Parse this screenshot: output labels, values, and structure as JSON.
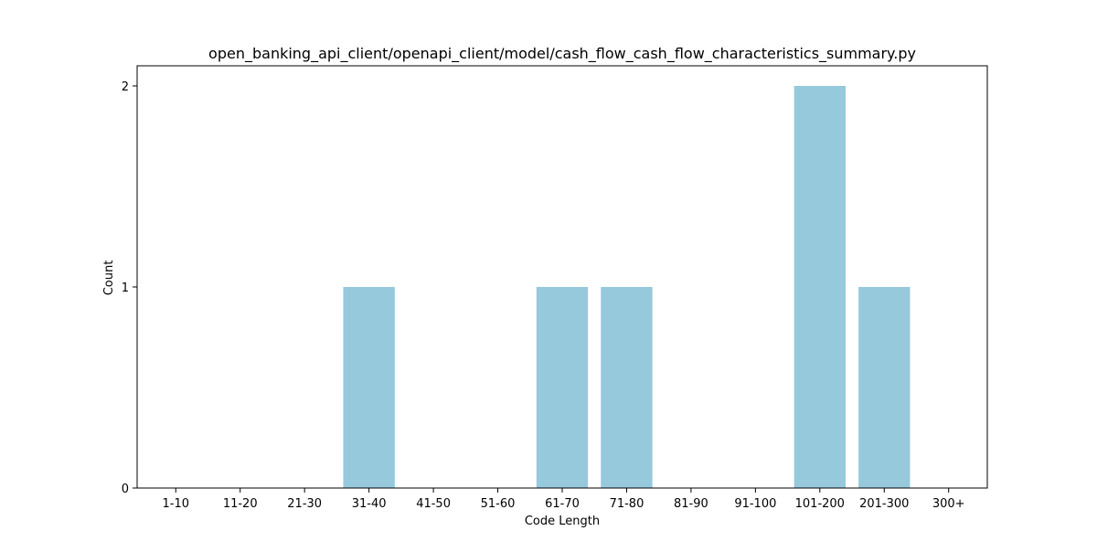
{
  "chart_data": {
    "type": "bar",
    "title": "open_banking_api_client/openapi_client/model/cash_flow_cash_flow_characteristics_summary.py",
    "xlabel": "Code Length",
    "ylabel": "Count",
    "categories": [
      "1-10",
      "11-20",
      "21-30",
      "31-40",
      "41-50",
      "51-60",
      "61-70",
      "71-80",
      "81-90",
      "91-100",
      "101-200",
      "201-300",
      "300+"
    ],
    "values": [
      0,
      0,
      0,
      1,
      0,
      0,
      1,
      1,
      0,
      0,
      2,
      1,
      0
    ],
    "ylim": [
      0,
      2.1
    ],
    "yticks": [
      0,
      1,
      2
    ],
    "grid": false,
    "colors": {
      "bar": "#96c9dc",
      "axis": "#000000",
      "background": "#ffffff"
    }
  }
}
